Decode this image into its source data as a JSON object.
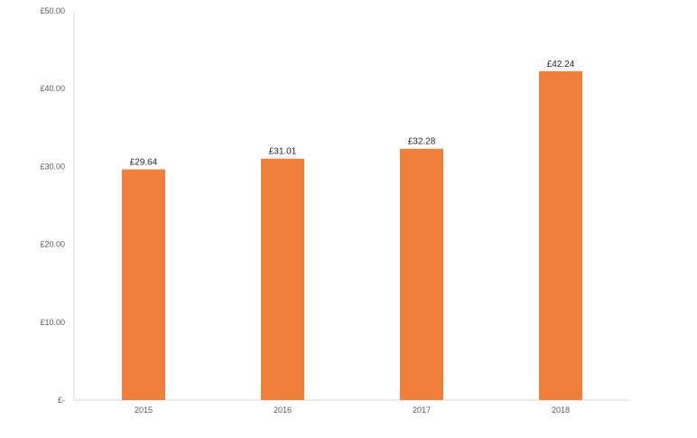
{
  "chart_data": {
    "type": "bar",
    "title": "",
    "xlabel": "",
    "ylabel": "",
    "categories": [
      "2015",
      "2016",
      "2017",
      "2018"
    ],
    "values": [
      29.64,
      31.01,
      32.28,
      42.24
    ],
    "data_labels": [
      "£29.64",
      "£31.01",
      "£32.28",
      "£42.24"
    ],
    "ylim": [
      0,
      50
    ],
    "y_ticks": [
      0,
      10,
      20,
      30,
      40,
      50
    ],
    "y_tick_labels": [
      "£-",
      "£10.00",
      "£20.00",
      "£30.00",
      "£40.00",
      "£50.00"
    ],
    "bar_color": "#f07f3c",
    "grid": false,
    "legend": "none"
  }
}
